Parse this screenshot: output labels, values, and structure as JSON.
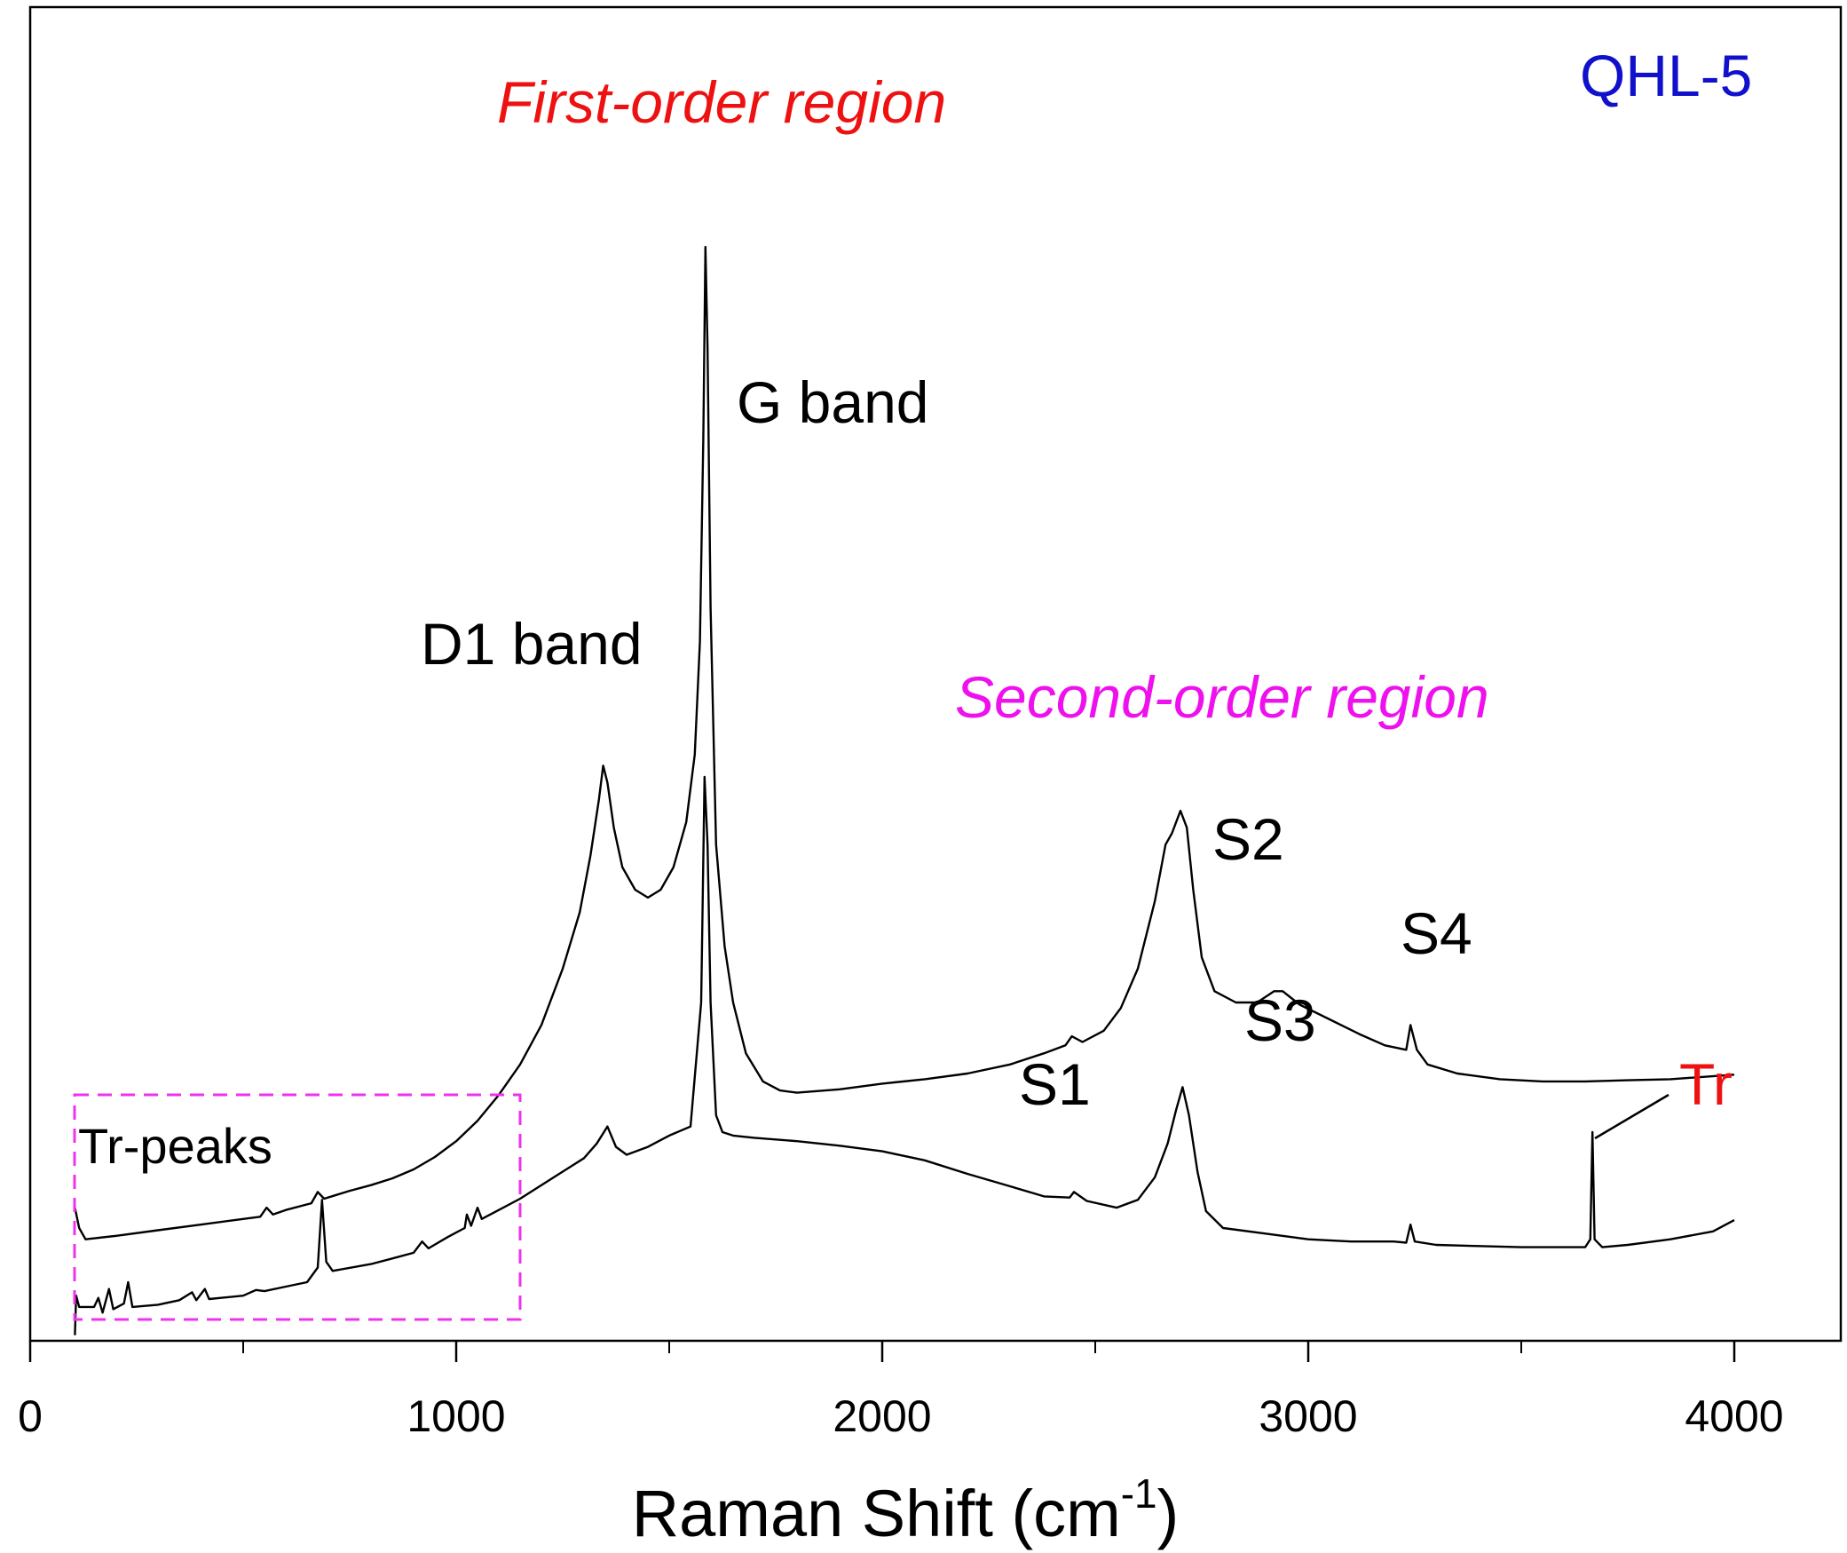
{
  "chart_data": {
    "type": "line",
    "title": "QHL-5",
    "xlabel": "Raman Shift (cm",
    "xlabel_superscript": "-1",
    "xlabel_suffix": ")",
    "ylabel": "",
    "xlim": [
      0,
      4250
    ],
    "ylim": [
      0,
      1.0
    ],
    "xticks": [
      0,
      1000,
      2000,
      3000,
      4000
    ],
    "xtick_labels": [
      "0",
      "1000",
      "2000",
      "3000",
      "4000"
    ],
    "minor_xticks": [
      500,
      1500,
      2500,
      3500
    ],
    "grid": false,
    "legend": "none",
    "series": [
      {
        "name": "upper spectrum",
        "color": "#000000",
        "points": [
          [
            105,
            0.118
          ],
          [
            115,
            0.1
          ],
          [
            130,
            0.09
          ],
          [
            200,
            0.093
          ],
          [
            300,
            0.098
          ],
          [
            400,
            0.103
          ],
          [
            500,
            0.108
          ],
          [
            540,
            0.11
          ],
          [
            555,
            0.118
          ],
          [
            570,
            0.112
          ],
          [
            600,
            0.116
          ],
          [
            660,
            0.122
          ],
          [
            675,
            0.132
          ],
          [
            690,
            0.126
          ],
          [
            750,
            0.133
          ],
          [
            800,
            0.138
          ],
          [
            850,
            0.144
          ],
          [
            900,
            0.152
          ],
          [
            950,
            0.163
          ],
          [
            1000,
            0.177
          ],
          [
            1050,
            0.195
          ],
          [
            1100,
            0.218
          ],
          [
            1150,
            0.245
          ],
          [
            1200,
            0.28
          ],
          [
            1250,
            0.33
          ],
          [
            1290,
            0.38
          ],
          [
            1315,
            0.43
          ],
          [
            1335,
            0.48
          ],
          [
            1345,
            0.51
          ],
          [
            1355,
            0.495
          ],
          [
            1370,
            0.455
          ],
          [
            1390,
            0.42
          ],
          [
            1420,
            0.4
          ],
          [
            1450,
            0.393
          ],
          [
            1480,
            0.4
          ],
          [
            1510,
            0.42
          ],
          [
            1540,
            0.46
          ],
          [
            1560,
            0.52
          ],
          [
            1572,
            0.62
          ],
          [
            1580,
            0.8
          ],
          [
            1585,
            0.97
          ],
          [
            1590,
            0.88
          ],
          [
            1597,
            0.65
          ],
          [
            1610,
            0.44
          ],
          [
            1630,
            0.35
          ],
          [
            1650,
            0.3
          ],
          [
            1680,
            0.255
          ],
          [
            1720,
            0.23
          ],
          [
            1760,
            0.222
          ],
          [
            1800,
            0.22
          ],
          [
            1900,
            0.223
          ],
          [
            2000,
            0.228
          ],
          [
            2100,
            0.232
          ],
          [
            2200,
            0.237
          ],
          [
            2300,
            0.245
          ],
          [
            2380,
            0.255
          ],
          [
            2430,
            0.262
          ],
          [
            2445,
            0.27
          ],
          [
            2470,
            0.265
          ],
          [
            2520,
            0.275
          ],
          [
            2560,
            0.295
          ],
          [
            2600,
            0.33
          ],
          [
            2640,
            0.39
          ],
          [
            2665,
            0.44
          ],
          [
            2680,
            0.45
          ],
          [
            2700,
            0.47
          ],
          [
            2715,
            0.455
          ],
          [
            2730,
            0.4
          ],
          [
            2750,
            0.34
          ],
          [
            2780,
            0.31
          ],
          [
            2830,
            0.3
          ],
          [
            2880,
            0.3
          ],
          [
            2920,
            0.31
          ],
          [
            2940,
            0.31
          ],
          [
            2980,
            0.298
          ],
          [
            3050,
            0.285
          ],
          [
            3120,
            0.272
          ],
          [
            3180,
            0.262
          ],
          [
            3230,
            0.258
          ],
          [
            3240,
            0.28
          ],
          [
            3255,
            0.258
          ],
          [
            3280,
            0.245
          ],
          [
            3350,
            0.237
          ],
          [
            3450,
            0.232
          ],
          [
            3550,
            0.23
          ],
          [
            3650,
            0.23
          ],
          [
            3750,
            0.231
          ],
          [
            3850,
            0.232
          ],
          [
            4000,
            0.236
          ]
        ]
      },
      {
        "name": "lower spectrum",
        "color": "#000000",
        "points": [
          [
            105,
            0.005
          ],
          [
            108,
            0.04
          ],
          [
            115,
            0.03
          ],
          [
            150,
            0.03
          ],
          [
            160,
            0.038
          ],
          [
            170,
            0.025
          ],
          [
            185,
            0.046
          ],
          [
            195,
            0.028
          ],
          [
            220,
            0.033
          ],
          [
            230,
            0.052
          ],
          [
            240,
            0.03
          ],
          [
            300,
            0.032
          ],
          [
            350,
            0.036
          ],
          [
            380,
            0.043
          ],
          [
            390,
            0.036
          ],
          [
            410,
            0.046
          ],
          [
            420,
            0.037
          ],
          [
            500,
            0.04
          ],
          [
            530,
            0.045
          ],
          [
            550,
            0.044
          ],
          [
            600,
            0.048
          ],
          [
            650,
            0.052
          ],
          [
            675,
            0.065
          ],
          [
            685,
            0.125
          ],
          [
            695,
            0.07
          ],
          [
            710,
            0.062
          ],
          [
            800,
            0.068
          ],
          [
            850,
            0.073
          ],
          [
            900,
            0.078
          ],
          [
            920,
            0.088
          ],
          [
            935,
            0.082
          ],
          [
            980,
            0.092
          ],
          [
            1020,
            0.1
          ],
          [
            1025,
            0.112
          ],
          [
            1035,
            0.102
          ],
          [
            1050,
            0.118
          ],
          [
            1060,
            0.108
          ],
          [
            1100,
            0.116
          ],
          [
            1150,
            0.126
          ],
          [
            1200,
            0.138
          ],
          [
            1250,
            0.15
          ],
          [
            1300,
            0.162
          ],
          [
            1330,
            0.175
          ],
          [
            1355,
            0.19
          ],
          [
            1375,
            0.172
          ],
          [
            1400,
            0.165
          ],
          [
            1450,
            0.172
          ],
          [
            1500,
            0.182
          ],
          [
            1550,
            0.19
          ],
          [
            1575,
            0.3
          ],
          [
            1583,
            0.5
          ],
          [
            1590,
            0.44
          ],
          [
            1597,
            0.3
          ],
          [
            1610,
            0.2
          ],
          [
            1625,
            0.185
          ],
          [
            1650,
            0.182
          ],
          [
            1700,
            0.18
          ],
          [
            1800,
            0.177
          ],
          [
            1900,
            0.173
          ],
          [
            2000,
            0.168
          ],
          [
            2100,
            0.16
          ],
          [
            2200,
            0.148
          ],
          [
            2300,
            0.137
          ],
          [
            2380,
            0.128
          ],
          [
            2440,
            0.127
          ],
          [
            2450,
            0.132
          ],
          [
            2480,
            0.124
          ],
          [
            2550,
            0.118
          ],
          [
            2600,
            0.125
          ],
          [
            2640,
            0.145
          ],
          [
            2670,
            0.175
          ],
          [
            2690,
            0.205
          ],
          [
            2705,
            0.225
          ],
          [
            2720,
            0.2
          ],
          [
            2740,
            0.15
          ],
          [
            2760,
            0.115
          ],
          [
            2800,
            0.1
          ],
          [
            2900,
            0.095
          ],
          [
            3000,
            0.09
          ],
          [
            3100,
            0.088
          ],
          [
            3200,
            0.088
          ],
          [
            3230,
            0.087
          ],
          [
            3240,
            0.103
          ],
          [
            3250,
            0.088
          ],
          [
            3300,
            0.085
          ],
          [
            3400,
            0.084
          ],
          [
            3500,
            0.083
          ],
          [
            3600,
            0.083
          ],
          [
            3650,
            0.083
          ],
          [
            3662,
            0.09
          ],
          [
            3667,
            0.185
          ],
          [
            3672,
            0.09
          ],
          [
            3690,
            0.083
          ],
          [
            3750,
            0.085
          ],
          [
            3850,
            0.09
          ],
          [
            3950,
            0.097
          ],
          [
            4000,
            0.107
          ]
        ]
      }
    ],
    "annotations": {
      "sample_label": "QHL-5",
      "first_order": "First-order region",
      "second_order": "Second-order region",
      "g_band": "G band",
      "d1_band": "D1 band",
      "s1": "S1",
      "s2": "S2",
      "s3": "S3",
      "s4": "S4",
      "tr": "Tr",
      "tr_peaks": "Tr-peaks"
    },
    "colors": {
      "sample_label": "#1111cc",
      "first_order": "#ee1111",
      "second_order": "#ee11ee",
      "tr": "#ee1111",
      "box": "#ee33ee"
    }
  }
}
